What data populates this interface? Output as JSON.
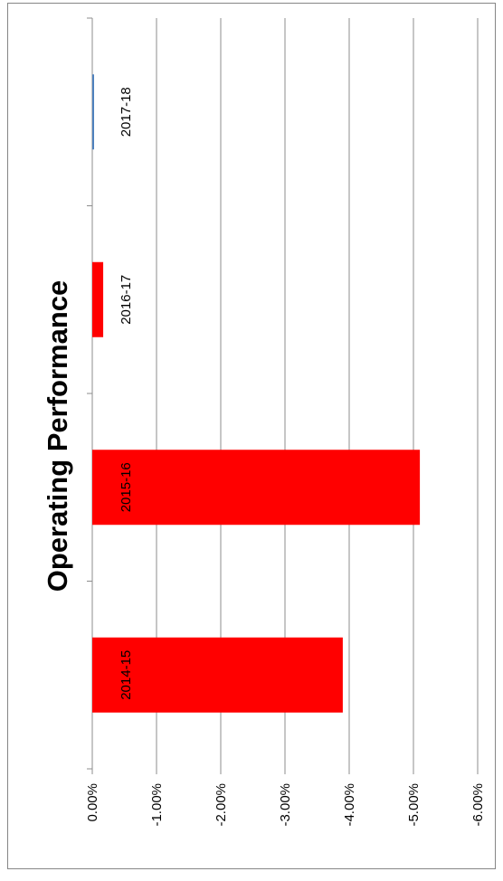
{
  "chart_data": {
    "type": "bar",
    "orientation": "horizontal",
    "title": "Operating Performance",
    "categories": [
      "2014-15",
      "2015-16",
      "2016-17",
      "2017-18"
    ],
    "values": [
      -3.9,
      -5.1,
      -0.17,
      -0.02
    ],
    "value_format": "percent",
    "ylim": [
      -6,
      0
    ],
    "ticks": [
      "0.00%",
      "-1.00%",
      "-2.00%",
      "-3.00%",
      "-4.00%",
      "-5.00%",
      "-6.00%"
    ],
    "grid": true,
    "legend": "none",
    "colors": {
      "bar": "#ff0000",
      "bar_small_positive": "#4f81bd",
      "grid": "#8c8c8c",
      "border": "#868686",
      "text": "#000000"
    }
  }
}
